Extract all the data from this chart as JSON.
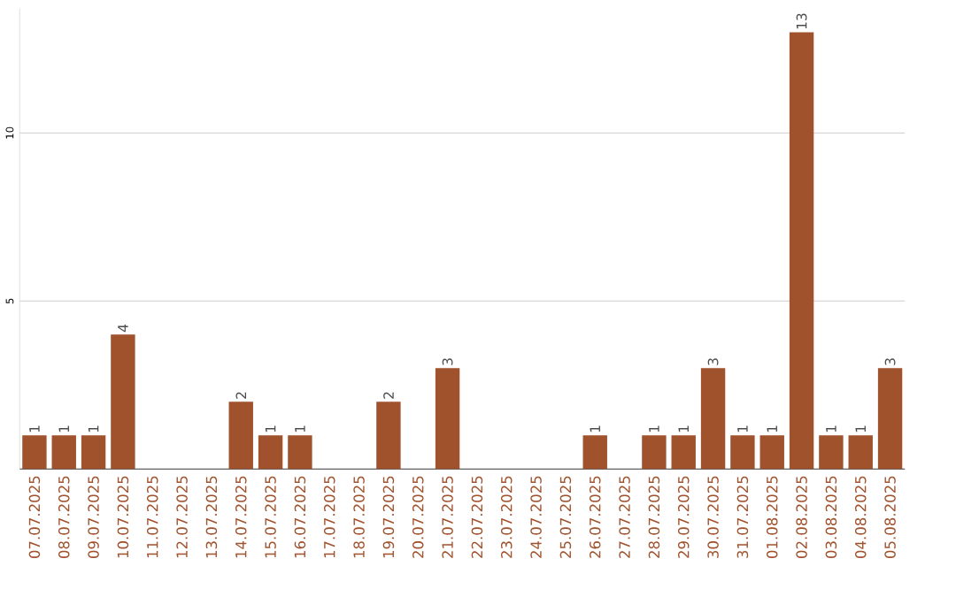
{
  "chart_data": {
    "type": "bar",
    "categories": [
      "07.07.2025",
      "08.07.2025",
      "09.07.2025",
      "10.07.2025",
      "11.07.2025",
      "12.07.2025",
      "13.07.2025",
      "14.07.2025",
      "15.07.2025",
      "16.07.2025",
      "17.07.2025",
      "18.07.2025",
      "19.07.2025",
      "20.07.2025",
      "21.07.2025",
      "22.07.2025",
      "23.07.2025",
      "24.07.2025",
      "25.07.2025",
      "26.07.2025",
      "27.07.2025",
      "28.07.2025",
      "29.07.2025",
      "30.07.2025",
      "31.07.2025",
      "01.08.2025",
      "02.08.2025",
      "03.08.2025",
      "04.08.2025",
      "05.08.2025"
    ],
    "values": [
      1,
      1,
      1,
      4,
      0,
      0,
      0,
      2,
      1,
      1,
      0,
      0,
      2,
      0,
      3,
      0,
      0,
      0,
      0,
      1,
      0,
      1,
      1,
      3,
      1,
      1,
      13,
      1,
      1,
      3
    ],
    "value_labels": [
      "1",
      "1",
      "1",
      "4",
      null,
      null,
      null,
      "2",
      "1",
      "1",
      null,
      null,
      "2",
      null,
      "3",
      null,
      null,
      null,
      null,
      "1",
      null,
      "1",
      "1",
      "3",
      "1",
      "1",
      "13",
      "1",
      "1",
      "3"
    ],
    "color": "#a0522d",
    "ylim": [
      0,
      13.7
    ],
    "yticks": [
      5,
      10
    ],
    "grid": "y"
  }
}
